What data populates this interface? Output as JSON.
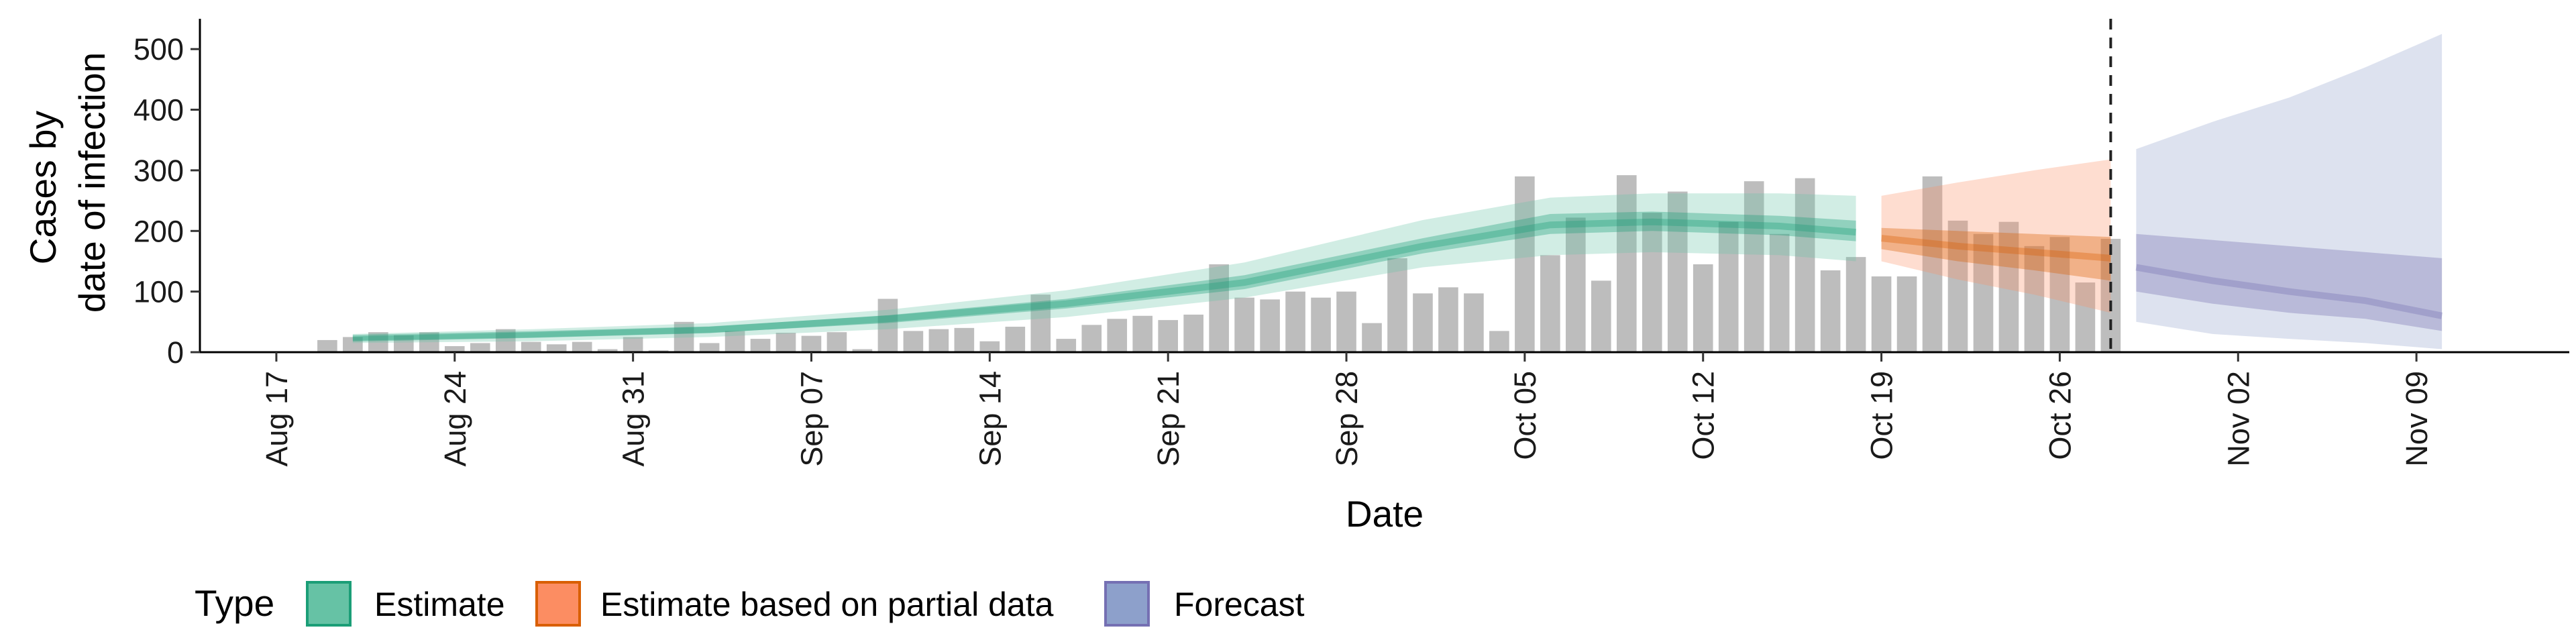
{
  "chart_data": {
    "type": "bar",
    "title": "",
    "xlabel": "Date",
    "ylabel_lines": [
      "Cases by",
      "date of infection"
    ],
    "ylim": [
      0,
      550
    ],
    "yticks": [
      0,
      100,
      200,
      300,
      400,
      500
    ],
    "x_range": [
      "2020-08-14",
      "2020-11-15"
    ],
    "xticks": [
      {
        "date": "2020-08-17",
        "label": "Aug 17"
      },
      {
        "date": "2020-08-24",
        "label": "Aug 24"
      },
      {
        "date": "2020-08-31",
        "label": "Aug 31"
      },
      {
        "date": "2020-09-07",
        "label": "Sep 07"
      },
      {
        "date": "2020-09-14",
        "label": "Sep 14"
      },
      {
        "date": "2020-09-21",
        "label": "Sep 21"
      },
      {
        "date": "2020-09-28",
        "label": "Sep 28"
      },
      {
        "date": "2020-10-05",
        "label": "Oct 05"
      },
      {
        "date": "2020-10-12",
        "label": "Oct 12"
      },
      {
        "date": "2020-10-19",
        "label": "Oct 19"
      },
      {
        "date": "2020-10-26",
        "label": "Oct 26"
      },
      {
        "date": "2020-11-02",
        "label": "Nov 02"
      },
      {
        "date": "2020-11-09",
        "label": "Nov 09"
      }
    ],
    "grid": false,
    "reference_line": {
      "date": "2020-10-28",
      "style": "dashed"
    },
    "bars": {
      "start_date": "2020-08-19",
      "values": [
        20,
        25,
        33,
        28,
        33,
        10,
        15,
        38,
        17,
        13,
        17,
        5,
        25,
        3,
        50,
        15,
        35,
        22,
        32,
        27,
        33,
        5,
        88,
        35,
        38,
        40,
        18,
        42,
        95,
        22,
        45,
        55,
        60,
        53,
        62,
        145,
        90,
        87,
        100,
        90,
        100,
        48,
        155,
        97,
        107,
        97,
        35,
        290,
        160,
        222,
        118,
        292,
        230,
        265,
        145,
        215,
        282,
        195,
        287,
        135,
        157,
        125,
        125,
        290,
        217,
        195,
        215,
        175,
        190,
        115,
        187
      ],
      "color": "#bdbdbd"
    },
    "series": [
      {
        "name": "Estimate",
        "color": "#1b9e77",
        "fill": "#66c2a5",
        "x": [
          "2020-08-20",
          "2020-08-27",
          "2020-09-03",
          "2020-09-10",
          "2020-09-17",
          "2020-09-24",
          "2020-10-01",
          "2020-10-06",
          "2020-10-10",
          "2020-10-15",
          "2020-10-18"
        ],
        "median": [
          23,
          29,
          37,
          55,
          80,
          115,
          175,
          210,
          215,
          208,
          198
        ],
        "lower90": [
          15,
          18,
          25,
          38,
          58,
          90,
          140,
          160,
          165,
          160,
          150
        ],
        "upper90": [
          30,
          38,
          48,
          70,
          102,
          148,
          218,
          255,
          262,
          262,
          258
        ],
        "lower50": [
          19,
          24,
          32,
          48,
          72,
          104,
          163,
          195,
          200,
          193,
          183
        ],
        "upper50": [
          26,
          33,
          42,
          61,
          88,
          127,
          188,
          228,
          232,
          225,
          217
        ]
      },
      {
        "name": "Estimate based on partial data",
        "color": "#d95f02",
        "fill": "#fc8d62",
        "x": [
          "2020-10-19",
          "2020-10-22",
          "2020-10-25",
          "2020-10-28"
        ],
        "median": [
          188,
          175,
          165,
          155
        ],
        "lower90": [
          150,
          120,
          95,
          65
        ],
        "upper90": [
          258,
          280,
          300,
          318
        ],
        "lower50": [
          170,
          150,
          135,
          118
        ],
        "upper50": [
          205,
          200,
          195,
          190
        ]
      },
      {
        "name": "Forecast",
        "color": "#7570b3",
        "fill": "#8da0cb",
        "x": [
          "2020-10-29",
          "2020-11-01",
          "2020-11-04",
          "2020-11-07",
          "2020-11-10"
        ],
        "median": [
          140,
          118,
          100,
          85,
          60
        ],
        "lower90": [
          50,
          30,
          22,
          15,
          5
        ],
        "upper90": [
          335,
          380,
          420,
          470,
          525
        ],
        "lower50": [
          100,
          80,
          65,
          55,
          35
        ],
        "upper50": [
          195,
          185,
          175,
          165,
          155
        ]
      }
    ],
    "legend": {
      "title": "Type",
      "position": "bottom",
      "items": [
        {
          "label": "Estimate",
          "fill": "#66c2a5",
          "border": "#1b9e77"
        },
        {
          "label": "Estimate based on partial data",
          "fill": "#fc8d62",
          "border": "#d95f02"
        },
        {
          "label": "Forecast",
          "fill": "#8da0cb",
          "border": "#7570b3"
        }
      ]
    }
  }
}
